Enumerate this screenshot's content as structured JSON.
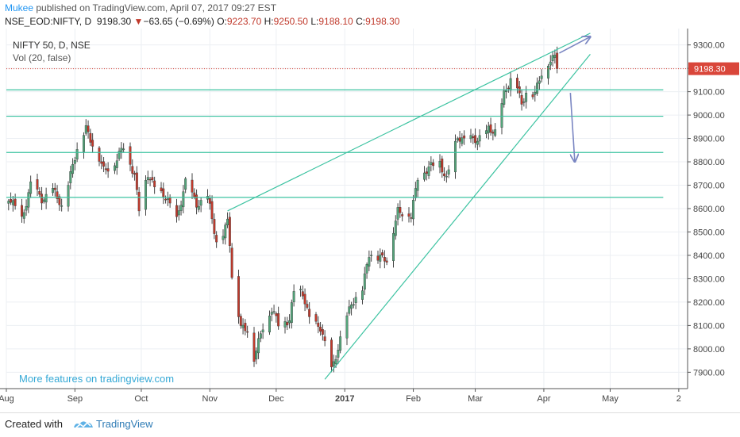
{
  "header": {
    "author": "Mukee",
    "published_text": "published on TradingView.com, April 07, 2017 09:27 EST",
    "symbol": "NSE_EOD:NIFTY, D",
    "last": "9198.30",
    "change_arrow": "▼",
    "change": "−63.65 (−0.69%)",
    "o_label": "O:",
    "o_value": "9223.70",
    "h_label": "H:",
    "h_value": "9250.50",
    "l_label": "L:",
    "l_value": "9188.10",
    "c_label": "C:",
    "c_value": "9198.30"
  },
  "legend": {
    "title": "NIFTY 50, D, NSE",
    "volume": "Vol (20, false)"
  },
  "promo": "More features on tradingview.com",
  "footer": {
    "created_with": "Created with",
    "brand": "TradingView"
  },
  "colors": {
    "up": "#53a57a",
    "down": "#c0392b",
    "line": "#3cc3a1",
    "arrow": "#7a86c2",
    "price_badge": "#d9463a",
    "grid": "#eceff3"
  },
  "chart_data": {
    "type": "candlestick",
    "ylim": [
      7830,
      9370
    ],
    "yticks": [
      7900,
      8000,
      8100,
      8200,
      8300,
      8400,
      8500,
      8600,
      8700,
      8800,
      8900,
      9000,
      9100,
      9200,
      9300
    ],
    "ytick_labels": [
      "7900.00",
      "8000.00",
      "8100.00",
      "8200.00",
      "8300.00",
      "8400.00",
      "8500.00",
      "8600.00",
      "8700.00",
      "8800.00",
      "8900.00",
      "9000.00",
      "9100.00",
      "9200.00",
      "9300.00"
    ],
    "xlim": [
      "2016-08-01",
      "2017-06-05"
    ],
    "xticks": [
      {
        "label": "Aug",
        "date": "2016-08-01",
        "bold": false
      },
      {
        "label": "Sep",
        "date": "2016-09-01",
        "bold": false
      },
      {
        "label": "Oct",
        "date": "2016-10-01",
        "bold": false
      },
      {
        "label": "Nov",
        "date": "2016-11-01",
        "bold": false
      },
      {
        "label": "Dec",
        "date": "2016-12-01",
        "bold": false
      },
      {
        "label": "2017",
        "date": "2017-01-01",
        "bold": true
      },
      {
        "label": "Feb",
        "date": "2017-02-01",
        "bold": false
      },
      {
        "label": "Mar",
        "date": "2017-03-01",
        "bold": false
      },
      {
        "label": "Apr",
        "date": "2017-04-01",
        "bold": false
      },
      {
        "label": "May",
        "date": "2017-05-01",
        "bold": false
      },
      {
        "label": "2",
        "date": "2017-06-01",
        "bold": false
      }
    ],
    "last_price": 9198.3,
    "last_price_label": "9198.30",
    "grid": true,
    "keypoints": [
      [
        "2016-08-02",
        8640
      ],
      [
        "2016-08-08",
        8560
      ],
      [
        "2016-08-12",
        8700
      ],
      [
        "2016-08-17",
        8640
      ],
      [
        "2016-08-22",
        8680
      ],
      [
        "2016-08-26",
        8600
      ],
      [
        "2016-08-31",
        8790
      ],
      [
        "2016-09-06",
        8950
      ],
      [
        "2016-09-09",
        8880
      ],
      [
        "2016-09-14",
        8760
      ],
      [
        "2016-09-19",
        8800
      ],
      [
        "2016-09-23",
        8860
      ],
      [
        "2016-09-28",
        8750
      ],
      [
        "2016-09-30",
        8600
      ],
      [
        "2016-10-04",
        8740
      ],
      [
        "2016-10-07",
        8700
      ],
      [
        "2016-10-12",
        8640
      ],
      [
        "2016-10-17",
        8560
      ],
      [
        "2016-10-21",
        8710
      ],
      [
        "2016-10-26",
        8620
      ],
      [
        "2016-10-31",
        8650
      ],
      [
        "2016-11-04",
        8450
      ],
      [
        "2016-11-07",
        8500
      ],
      [
        "2016-11-09",
        8550
      ],
      [
        "2016-11-10",
        8450
      ],
      [
        "2016-11-11",
        8300
      ],
      [
        "2016-11-15",
        8100
      ],
      [
        "2016-11-18",
        8090
      ],
      [
        "2016-11-21",
        7950
      ],
      [
        "2016-11-25",
        8100
      ],
      [
        "2016-11-29",
        8170
      ],
      [
        "2016-12-02",
        8100
      ],
      [
        "2016-12-07",
        8130
      ],
      [
        "2016-12-09",
        8250
      ],
      [
        "2016-12-13",
        8230
      ],
      [
        "2016-12-16",
        8140
      ],
      [
        "2016-12-21",
        8080
      ],
      [
        "2016-12-26",
        7920
      ],
      [
        "2016-12-29",
        8000
      ],
      [
        "2017-01-04",
        8200
      ],
      [
        "2017-01-09",
        8250
      ],
      [
        "2017-01-12",
        8400
      ],
      [
        "2017-01-17",
        8400
      ],
      [
        "2017-01-20",
        8370
      ],
      [
        "2017-01-25",
        8600
      ],
      [
        "2017-01-31",
        8560
      ],
      [
        "2017-02-03",
        8740
      ],
      [
        "2017-02-08",
        8770
      ],
      [
        "2017-02-13",
        8800
      ],
      [
        "2017-02-16",
        8730
      ],
      [
        "2017-02-21",
        8900
      ],
      [
        "2017-02-27",
        8900
      ],
      [
        "2017-03-02",
        8880
      ],
      [
        "2017-03-07",
        8950
      ],
      [
        "2017-03-10",
        8920
      ],
      [
        "2017-03-14",
        9090
      ],
      [
        "2017-03-17",
        9160
      ],
      [
        "2017-03-20",
        9120
      ],
      [
        "2017-03-22",
        9030
      ],
      [
        "2017-03-24",
        9100
      ],
      [
        "2017-03-28",
        9100
      ],
      [
        "2017-03-31",
        9170
      ],
      [
        "2017-04-04",
        9240
      ],
      [
        "2017-04-06",
        9262
      ],
      [
        "2017-04-07",
        9198.3
      ]
    ],
    "trend_lines": [
      {
        "name": "upper-channel",
        "from": [
          "2016-11-09",
          8590
        ],
        "to": [
          "2017-04-22",
          9350
        ]
      },
      {
        "name": "lower-channel",
        "from": [
          "2016-12-23",
          7870
        ],
        "to": [
          "2017-04-22",
          9260
        ]
      }
    ],
    "horizontal_lines": [
      9108,
      8995,
      8840,
      8648
    ],
    "horizontal_line_start": "2016-08-01",
    "horizontal_line_end": "2017-05-25",
    "arrows": [
      {
        "name": "arrow-up",
        "from": [
          "2017-04-08",
          9265
        ],
        "to": [
          "2017-04-22",
          9335
        ]
      },
      {
        "name": "arrow-down",
        "from": [
          "2017-04-13",
          9095
        ],
        "to": [
          "2017-04-15",
          8800
        ]
      }
    ]
  }
}
